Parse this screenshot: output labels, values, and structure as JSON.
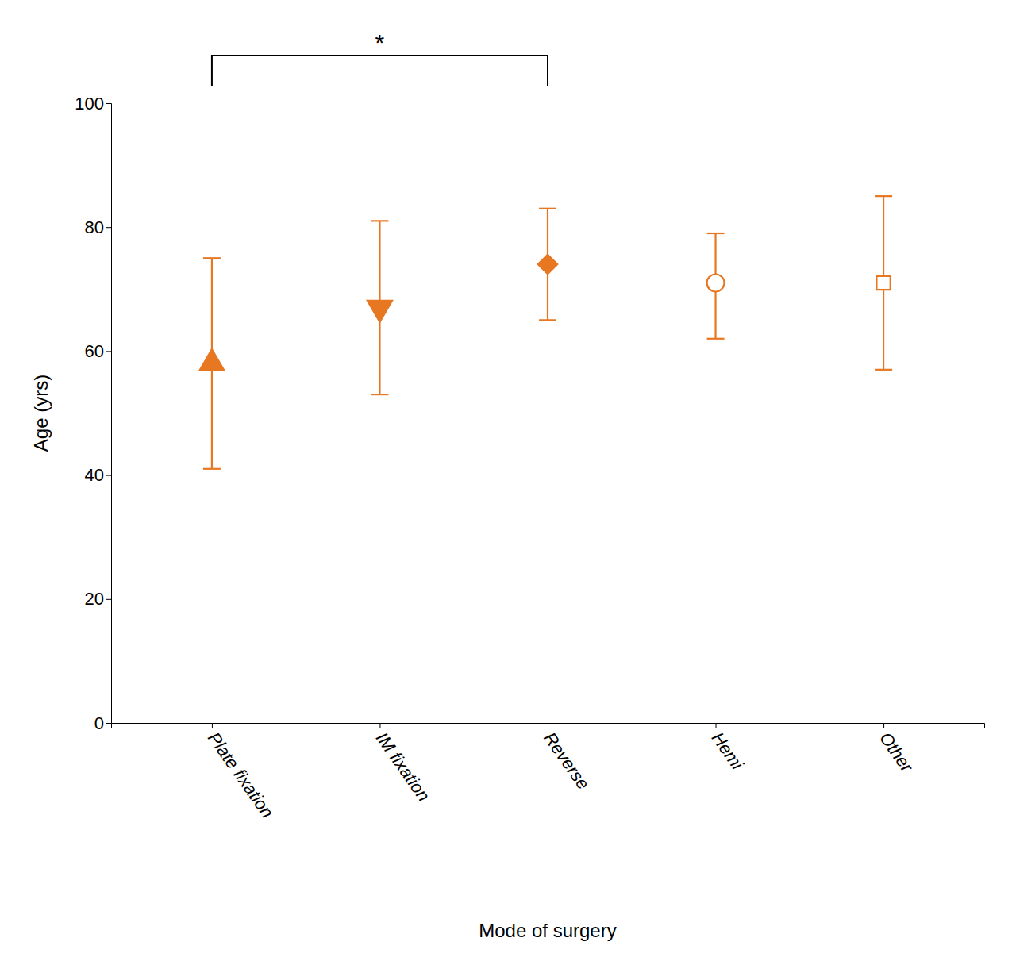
{
  "chart_data": {
    "type": "errorbar",
    "xlabel": "Mode of surgery",
    "ylabel": "Age (yrs)",
    "categories": [
      "Plate fixation",
      "IM fixation",
      "Reverse",
      "Hemi",
      "Other"
    ],
    "values": [
      58,
      67,
      74,
      71,
      71
    ],
    "errors_upper": [
      17,
      14,
      9,
      8,
      14
    ],
    "errors_lower": [
      17,
      14,
      9,
      9,
      14
    ],
    "color": "#E87722",
    "markers": [
      "triangle-up",
      "triangle-down",
      "diamond",
      "circle-open",
      "square-open"
    ],
    "ylim": [
      0,
      100
    ],
    "yticks": [
      0,
      20,
      40,
      60,
      80,
      100
    ],
    "grid": false,
    "annotations": [
      {
        "text": "*",
        "from": "Plate fixation",
        "to": "Reverse"
      }
    ]
  }
}
